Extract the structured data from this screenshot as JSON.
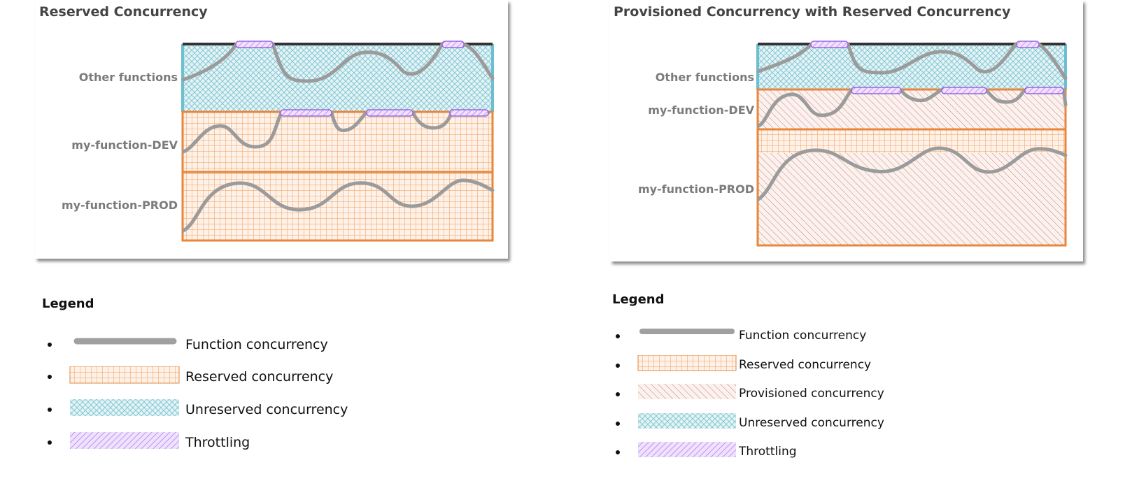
{
  "left_panel": {
    "title": "Reserved Concurrency",
    "rows": [
      "Other functions",
      "my-function-DEV",
      "my-function-PROD"
    ]
  },
  "right_panel": {
    "title": "Provisioned Concurrency with Reserved Concurrency",
    "rows": [
      "Other functions",
      "my-function-DEV",
      "my-function-PROD"
    ]
  },
  "left_legend": {
    "title": "Legend",
    "items": [
      "Function concurrency",
      "Reserved concurrency",
      "Unreserved concurrency",
      "Throttling"
    ]
  },
  "right_legend": {
    "title": "Legend",
    "items": [
      "Function concurrency",
      "Reserved concurrency",
      "Provisioned concurrency",
      "Unreserved concurrency",
      "Throttling"
    ]
  },
  "colors": {
    "function_line": "#9b9b9b",
    "reserved": "#e8863a",
    "unreserved": "#7cc3d0",
    "provisioned": "#c97a6a",
    "throttling": "#b57cf2",
    "border_top": "#333333"
  }
}
